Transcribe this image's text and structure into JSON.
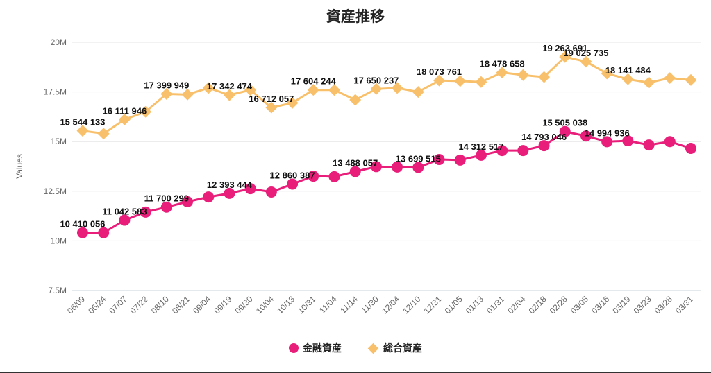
{
  "chart_data": {
    "type": "line",
    "title": "資産推移",
    "ylabel": "Values",
    "xlabel": "",
    "ylim": [
      7500000,
      20000000
    ],
    "yticks": [
      "7.5M",
      "10M",
      "12.5M",
      "15M",
      "17.5M",
      "20M"
    ],
    "grid": true,
    "legend": "bottom",
    "categories": [
      "06/09",
      "06/24",
      "07/07",
      "07/22",
      "08/10",
      "08/21",
      "09/04",
      "09/19",
      "09/30",
      "10/04",
      "10/13",
      "10/31",
      "11/04",
      "11/14",
      "11/30",
      "12/04",
      "12/10",
      "12/31",
      "01/05",
      "01/13",
      "01/31",
      "02/04",
      "02/18",
      "02/28",
      "03/05",
      "03/16",
      "03/19",
      "03/23",
      "03/28",
      "03/31"
    ],
    "series": [
      {
        "name": "金融資産",
        "color": "#e91e7a",
        "marker": "circle",
        "values": [
          10410056,
          10410000,
          11042583,
          11450000,
          11700299,
          11970000,
          12210000,
          12393444,
          12630000,
          12460000,
          12860387,
          13260000,
          13230000,
          13488057,
          13740000,
          13720000,
          13699515,
          14100000,
          14070000,
          14312517,
          14550000,
          14550000,
          14793046,
          15505038,
          15280000,
          14994936,
          15040000,
          14830000,
          15000000,
          14660000
        ],
        "labels": {
          "0": "10 410 056",
          "2": "11 042 583",
          "4": "11 700 299",
          "7": "12 393 444",
          "10": "12 860 387",
          "13": "13 488 057",
          "16": "13 699 515",
          "19": "14 312 517",
          "22": "14 793 046",
          "23": "15 505 038",
          "25": "14 994 936"
        }
      },
      {
        "name": "総合資産",
        "color": "#f8c06b",
        "marker": "diamond",
        "values": [
          15544133,
          15400000,
          16111946,
          16500000,
          17399949,
          17370000,
          17700000,
          17342474,
          17600000,
          16712057,
          16950000,
          17604244,
          17600000,
          17100000,
          17650237,
          17700000,
          17500000,
          18073761,
          18050000,
          18000000,
          18478658,
          18350000,
          18250000,
          19263691,
          19025735,
          18430000,
          18141484,
          17970000,
          18200000,
          18100000
        ],
        "labels": {
          "0": "15 544 133",
          "2": "16 111 946",
          "4": "17 399 949",
          "7": "17 342 474",
          "9": "16 712 057",
          "11": "17 604 244",
          "14": "17 650 237",
          "17": "18 073 761",
          "20": "18 478 658",
          "23": "19 263 691",
          "24": "19 025 735",
          "26": "18 141 484"
        }
      }
    ]
  }
}
